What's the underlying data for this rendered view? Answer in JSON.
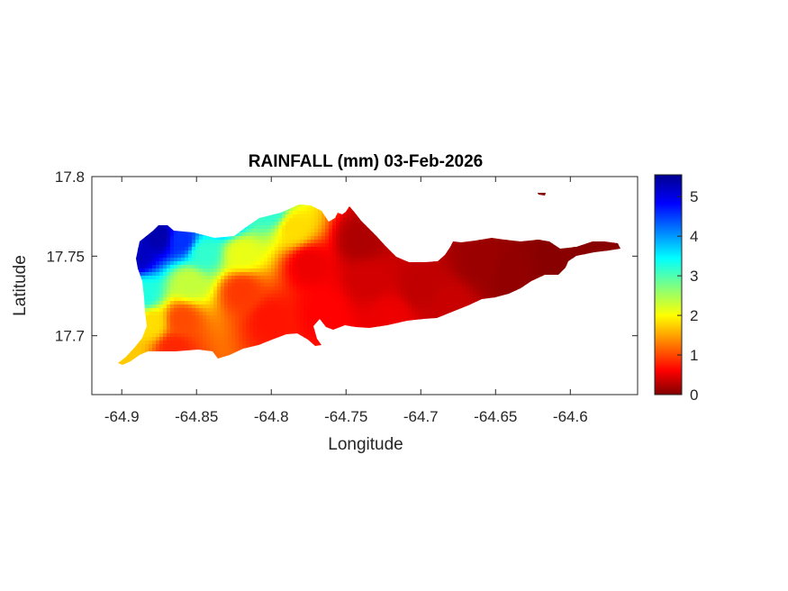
{
  "chart_data": {
    "type": "heatmap",
    "title": "RAINFALL (mm) 03-Feb-2026",
    "xlabel": "Longitude",
    "ylabel": "Latitude",
    "xlim": [
      -64.92,
      -64.555
    ],
    "ylim": [
      17.663,
      17.8
    ],
    "x_ticks": [
      -64.9,
      -64.85,
      -64.8,
      -64.75,
      -64.7,
      -64.65,
      -64.6
    ],
    "x_tick_labels": [
      "-64.9",
      "-64.85",
      "-64.8",
      "-64.75",
      "-64.7",
      "-64.65",
      "-64.6"
    ],
    "y_ticks": [
      17.7,
      17.75,
      17.8
    ],
    "y_tick_labels": [
      "17.7",
      "17.75",
      "17.8"
    ],
    "colorbar": {
      "colormap": "jet",
      "limits": [
        0,
        5.55
      ],
      "ticks": [
        0,
        1,
        2,
        3,
        4,
        5
      ],
      "tick_labels": [
        "0",
        "1",
        "2",
        "3",
        "4",
        "5"
      ],
      "colors": [
        "#00008f",
        "#0000ff",
        "#00ffff",
        "#ffff00",
        "#ff0000",
        "#800000"
      ]
    },
    "grid": false,
    "rainfall_points": [
      {
        "lon": -64.89,
        "lat": 17.75,
        "value": 5.2
      },
      {
        "lon": -64.875,
        "lat": 17.762,
        "value": 5.3
      },
      {
        "lon": -64.86,
        "lat": 17.76,
        "value": 4.6
      },
      {
        "lon": -64.83,
        "lat": 17.772,
        "value": 4.0
      },
      {
        "lon": -64.8,
        "lat": 17.778,
        "value": 3.2
      },
      {
        "lon": -64.845,
        "lat": 17.752,
        "value": 3.2
      },
      {
        "lon": -64.885,
        "lat": 17.726,
        "value": 3.3
      },
      {
        "lon": -64.855,
        "lat": 17.733,
        "value": 2.4
      },
      {
        "lon": -64.82,
        "lat": 17.752,
        "value": 2.2
      },
      {
        "lon": -64.785,
        "lat": 17.768,
        "value": 1.9
      },
      {
        "lon": -64.88,
        "lat": 17.708,
        "value": 1.9
      },
      {
        "lon": -64.895,
        "lat": 17.682,
        "value": 1.8
      },
      {
        "lon": -64.86,
        "lat": 17.71,
        "value": 1.1
      },
      {
        "lon": -64.82,
        "lat": 17.728,
        "value": 1.0
      },
      {
        "lon": -64.865,
        "lat": 17.692,
        "value": 0.9
      },
      {
        "lon": -64.8,
        "lat": 17.71,
        "value": 0.8
      },
      {
        "lon": -64.775,
        "lat": 17.745,
        "value": 0.6
      },
      {
        "lon": -64.765,
        "lat": 17.715,
        "value": 0.7
      },
      {
        "lon": -64.74,
        "lat": 17.76,
        "value": 0.25
      },
      {
        "lon": -64.735,
        "lat": 17.735,
        "value": 0.45
      },
      {
        "lon": -64.72,
        "lat": 17.712,
        "value": 0.6
      },
      {
        "lon": -64.7,
        "lat": 17.73,
        "value": 0.35
      },
      {
        "lon": -64.68,
        "lat": 17.72,
        "value": 0.4
      },
      {
        "lon": -64.66,
        "lat": 17.745,
        "value": 0.15
      },
      {
        "lon": -64.64,
        "lat": 17.738,
        "value": 0.1
      },
      {
        "lon": -64.61,
        "lat": 17.748,
        "value": 0.05
      },
      {
        "lon": -64.575,
        "lat": 17.753,
        "value": 0.05
      },
      {
        "lon": -64.625,
        "lat": 17.789,
        "value": 0.05
      }
    ]
  }
}
